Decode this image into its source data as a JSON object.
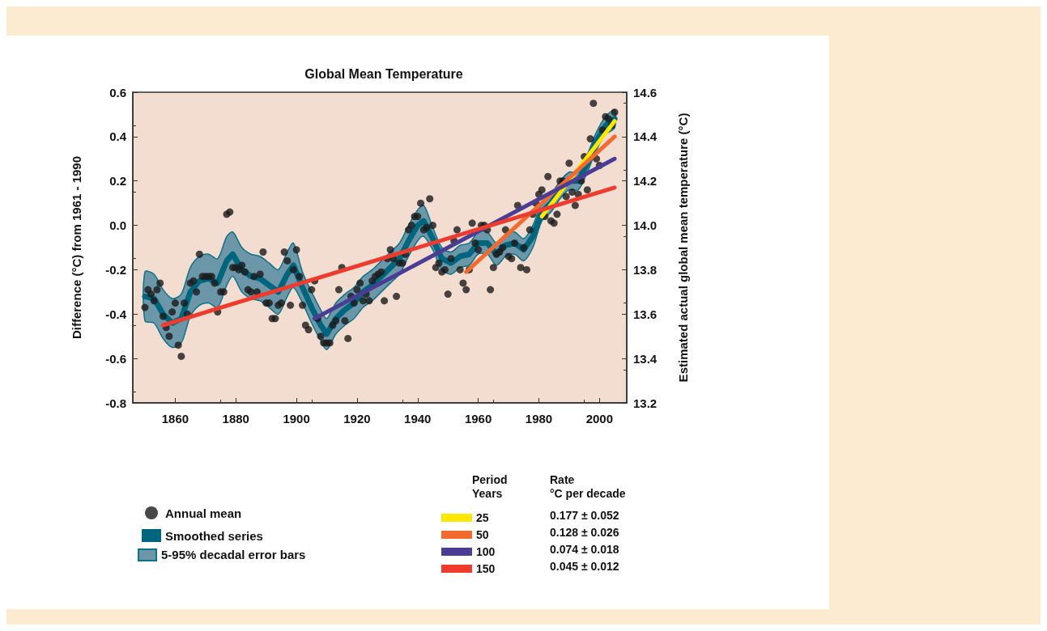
{
  "chart_data": {
    "type": "scatter",
    "title": "Global Mean Temperature",
    "ylabel": "Difference (°C) from 1961 - 1990",
    "y2label": "Estimated actual global mean temperature (°C)",
    "legend_title": "Period\nYears",
    "annotations": [
      "5-95% decadal error bars",
      "Rate\n°C per decade",
      "0.177 ± 0.052",
      "0.128 ± 0.026",
      "0.074 ± 0.018",
      "0.045 ± 0.012"
    ],
    "xlim": [
      1846,
      2009
    ],
    "xticks": [
      1860,
      1880,
      1900,
      1920,
      1940,
      1960,
      1980,
      2000
    ],
    "ylim": [
      -0.8,
      0.6
    ],
    "yticks": [
      -0.8,
      -0.6,
      -0.4,
      -0.2,
      {
        "value": 0,
        "label": "0.0"
      },
      0.2,
      0.4,
      0.6
    ],
    "y2lim": [
      13.2,
      14.6
    ],
    "y2ticks": [
      13.2,
      13.4,
      13.6,
      13.8,
      {
        "value": 14,
        "label": "14.0"
      },
      14.2,
      14.4,
      14.6
    ],
    "grid": false,
    "legend": "bottom",
    "line_style": "solid",
    "x": [
      1850,
      1851,
      1852,
      1853,
      1854,
      1855,
      1856,
      1857,
      1858,
      1859,
      1860,
      1861,
      1862,
      1863,
      1864,
      1865,
      1866,
      1867,
      1868,
      1869,
      1870,
      1871,
      1872,
      1873,
      1874,
      1875,
      1876,
      1877,
      1878,
      1879,
      1880,
      1881,
      1882,
      1883,
      1884,
      1885,
      1886,
      1887,
      1888,
      1889,
      1890,
      1891,
      1892,
      1893,
      1894,
      1895,
      1896,
      1897,
      1898,
      1899,
      1900,
      1901,
      1902,
      1903,
      1904,
      1905,
      1906,
      1907,
      1908,
      1909,
      1910,
      1911,
      1912,
      1913,
      1914,
      1915,
      1916,
      1917,
      1918,
      1919,
      1920,
      1921,
      1922,
      1923,
      1924,
      1925,
      1926,
      1927,
      1928,
      1929,
      1930,
      1931,
      1932,
      1933,
      1934,
      1935,
      1936,
      1937,
      1938,
      1939,
      1940,
      1941,
      1942,
      1943,
      1944,
      1945,
      1946,
      1947,
      1948,
      1949,
      1950,
      1951,
      1952,
      1953,
      1954,
      1955,
      1956,
      1957,
      1958,
      1959,
      1960,
      1961,
      1962,
      1963,
      1964,
      1965,
      1966,
      1967,
      1968,
      1969,
      1970,
      1971,
      1972,
      1973,
      1974,
      1975,
      1976,
      1977,
      1978,
      1979,
      1980,
      1981,
      1982,
      1983,
      1984,
      1985,
      1986,
      1987,
      1988,
      1989,
      1990,
      1991,
      1992,
      1993,
      1994,
      1995,
      1996,
      1997,
      1998,
      1999,
      2000,
      2001,
      2002,
      2003,
      2004,
      2005
    ],
    "series": [
      {
        "name": "Annual mean",
        "marker": "circle",
        "color": "#1a1a1a",
        "values": [
          -0.37,
          -0.29,
          -0.31,
          -0.34,
          -0.29,
          -0.26,
          -0.41,
          -0.46,
          -0.5,
          -0.39,
          -0.35,
          -0.54,
          -0.59,
          -0.35,
          -0.4,
          -0.26,
          -0.25,
          -0.3,
          -0.13,
          -0.23,
          -0.23,
          -0.23,
          -0.23,
          -0.26,
          -0.39,
          -0.3,
          -0.3,
          0.05,
          0.06,
          -0.19,
          -0.19,
          -0.2,
          -0.18,
          -0.21,
          -0.29,
          -0.3,
          -0.23,
          -0.3,
          -0.22,
          -0.12,
          -0.35,
          -0.35,
          -0.42,
          -0.42,
          -0.36,
          -0.35,
          -0.12,
          -0.16,
          -0.36,
          -0.2,
          -0.11,
          -0.23,
          -0.36,
          -0.45,
          -0.47,
          -0.29,
          -0.25,
          -0.42,
          -0.5,
          -0.53,
          -0.53,
          -0.53,
          -0.45,
          -0.43,
          -0.29,
          -0.19,
          -0.43,
          -0.51,
          -0.32,
          -0.35,
          -0.29,
          -0.26,
          -0.34,
          -0.31,
          -0.34,
          -0.25,
          -0.23,
          -0.22,
          -0.21,
          -0.34,
          -0.15,
          -0.11,
          -0.15,
          -0.32,
          -0.17,
          -0.17,
          -0.13,
          -0.02,
          0,
          0.04,
          0.04,
          0.1,
          -0.02,
          -0.01,
          0.12,
          0,
          -0.19,
          -0.17,
          -0.21,
          -0.2,
          -0.31,
          -0.15,
          -0.07,
          -0.02,
          -0.2,
          -0.26,
          -0.29,
          -0.2,
          0.01,
          -0.08,
          -0.11,
          0,
          0,
          -0.02,
          -0.29,
          -0.19,
          -0.13,
          -0.12,
          -0.1,
          -0.02,
          -0.14,
          -0.15,
          -0.08,
          0.09,
          -0.19,
          -0.1,
          -0.2,
          -0.02,
          0.05,
          0.1,
          0.14,
          0.16,
          0.04,
          0.22,
          0.02,
          0.01,
          0.05,
          0.2,
          0.2,
          0.13,
          0.28,
          0.15,
          0.09,
          0.14,
          0.2,
          0.31,
          0.16,
          0.39,
          0.55,
          0.3,
          0.27,
          0.43,
          0.49,
          0.48,
          0.45,
          0.51
        ]
      },
      {
        "name": "Smoothed series",
        "type": "line",
        "color": "#00667e",
        "x": [
          1850,
          1853,
          1856,
          1859,
          1862,
          1865,
          1868,
          1871,
          1874,
          1877,
          1879,
          1882,
          1885,
          1888,
          1891,
          1894,
          1897,
          1899,
          1902,
          1905,
          1908,
          1910,
          1913,
          1916,
          1919,
          1922,
          1925,
          1928,
          1931,
          1934,
          1937,
          1940,
          1942,
          1945,
          1948,
          1951,
          1954,
          1957,
          1960,
          1963,
          1966,
          1969,
          1972,
          1975,
          1978,
          1981,
          1984,
          1987,
          1990,
          1993,
          1996,
          1999,
          2002,
          2005
        ],
        "values": [
          -0.32,
          -0.33,
          -0.4,
          -0.44,
          -0.42,
          -0.3,
          -0.25,
          -0.24,
          -0.26,
          -0.16,
          -0.13,
          -0.2,
          -0.23,
          -0.24,
          -0.27,
          -0.3,
          -0.22,
          -0.18,
          -0.28,
          -0.37,
          -0.45,
          -0.49,
          -0.42,
          -0.38,
          -0.35,
          -0.3,
          -0.27,
          -0.23,
          -0.19,
          -0.15,
          -0.07,
          0,
          0.02,
          -0.06,
          -0.15,
          -0.17,
          -0.14,
          -0.13,
          -0.08,
          -0.08,
          -0.13,
          -0.09,
          -0.08,
          -0.11,
          -0.05,
          0.06,
          0.1,
          0.16,
          0.2,
          0.2,
          0.28,
          0.38,
          0.45,
          0.48
        ],
        "lower": [
          -0.43,
          -0.44,
          -0.51,
          -0.55,
          -0.53,
          -0.41,
          -0.36,
          -0.35,
          -0.37,
          -0.27,
          -0.23,
          -0.3,
          -0.33,
          -0.34,
          -0.37,
          -0.4,
          -0.32,
          -0.28,
          -0.35,
          -0.44,
          -0.52,
          -0.56,
          -0.49,
          -0.45,
          -0.42,
          -0.37,
          -0.34,
          -0.3,
          -0.26,
          -0.22,
          -0.14,
          -0.07,
          -0.05,
          -0.11,
          -0.2,
          -0.22,
          -0.19,
          -0.18,
          -0.13,
          -0.13,
          -0.18,
          -0.14,
          -0.13,
          -0.16,
          -0.1,
          0.02,
          0.06,
          0.12,
          0.16,
          0.16,
          0.24,
          0.34,
          0.41,
          0.44
        ],
        "upper": [
          -0.21,
          -0.22,
          -0.29,
          -0.33,
          -0.31,
          -0.19,
          -0.14,
          -0.13,
          -0.15,
          -0.05,
          -0.03,
          -0.1,
          -0.13,
          -0.14,
          -0.17,
          -0.2,
          -0.12,
          -0.08,
          -0.21,
          -0.3,
          -0.38,
          -0.42,
          -0.35,
          -0.31,
          -0.28,
          -0.23,
          -0.2,
          -0.16,
          -0.12,
          -0.08,
          0,
          0.07,
          0.09,
          -0.01,
          -0.1,
          -0.12,
          -0.09,
          -0.08,
          -0.03,
          -0.03,
          -0.08,
          -0.04,
          -0.03,
          -0.06,
          0,
          0.1,
          0.14,
          0.2,
          0.24,
          0.24,
          0.32,
          0.42,
          0.49,
          0.52
        ]
      },
      {
        "name": "25",
        "type": "line",
        "color": "#ffe800",
        "x": [
          1981,
          2005
        ],
        "values": [
          0.04,
          0.47
        ]
      },
      {
        "name": "50",
        "type": "line",
        "color": "#f26a2e",
        "x": [
          1956,
          2005
        ],
        "values": [
          -0.21,
          0.4
        ]
      },
      {
        "name": "100",
        "type": "line",
        "color": "#4b3d96",
        "x": [
          1906,
          2005
        ],
        "values": [
          -0.42,
          0.3
        ]
      },
      {
        "name": "150",
        "type": "line",
        "color": "#ee3b2e",
        "x": [
          1856,
          2005
        ],
        "values": [
          -0.45,
          0.17
        ]
      }
    ]
  }
}
